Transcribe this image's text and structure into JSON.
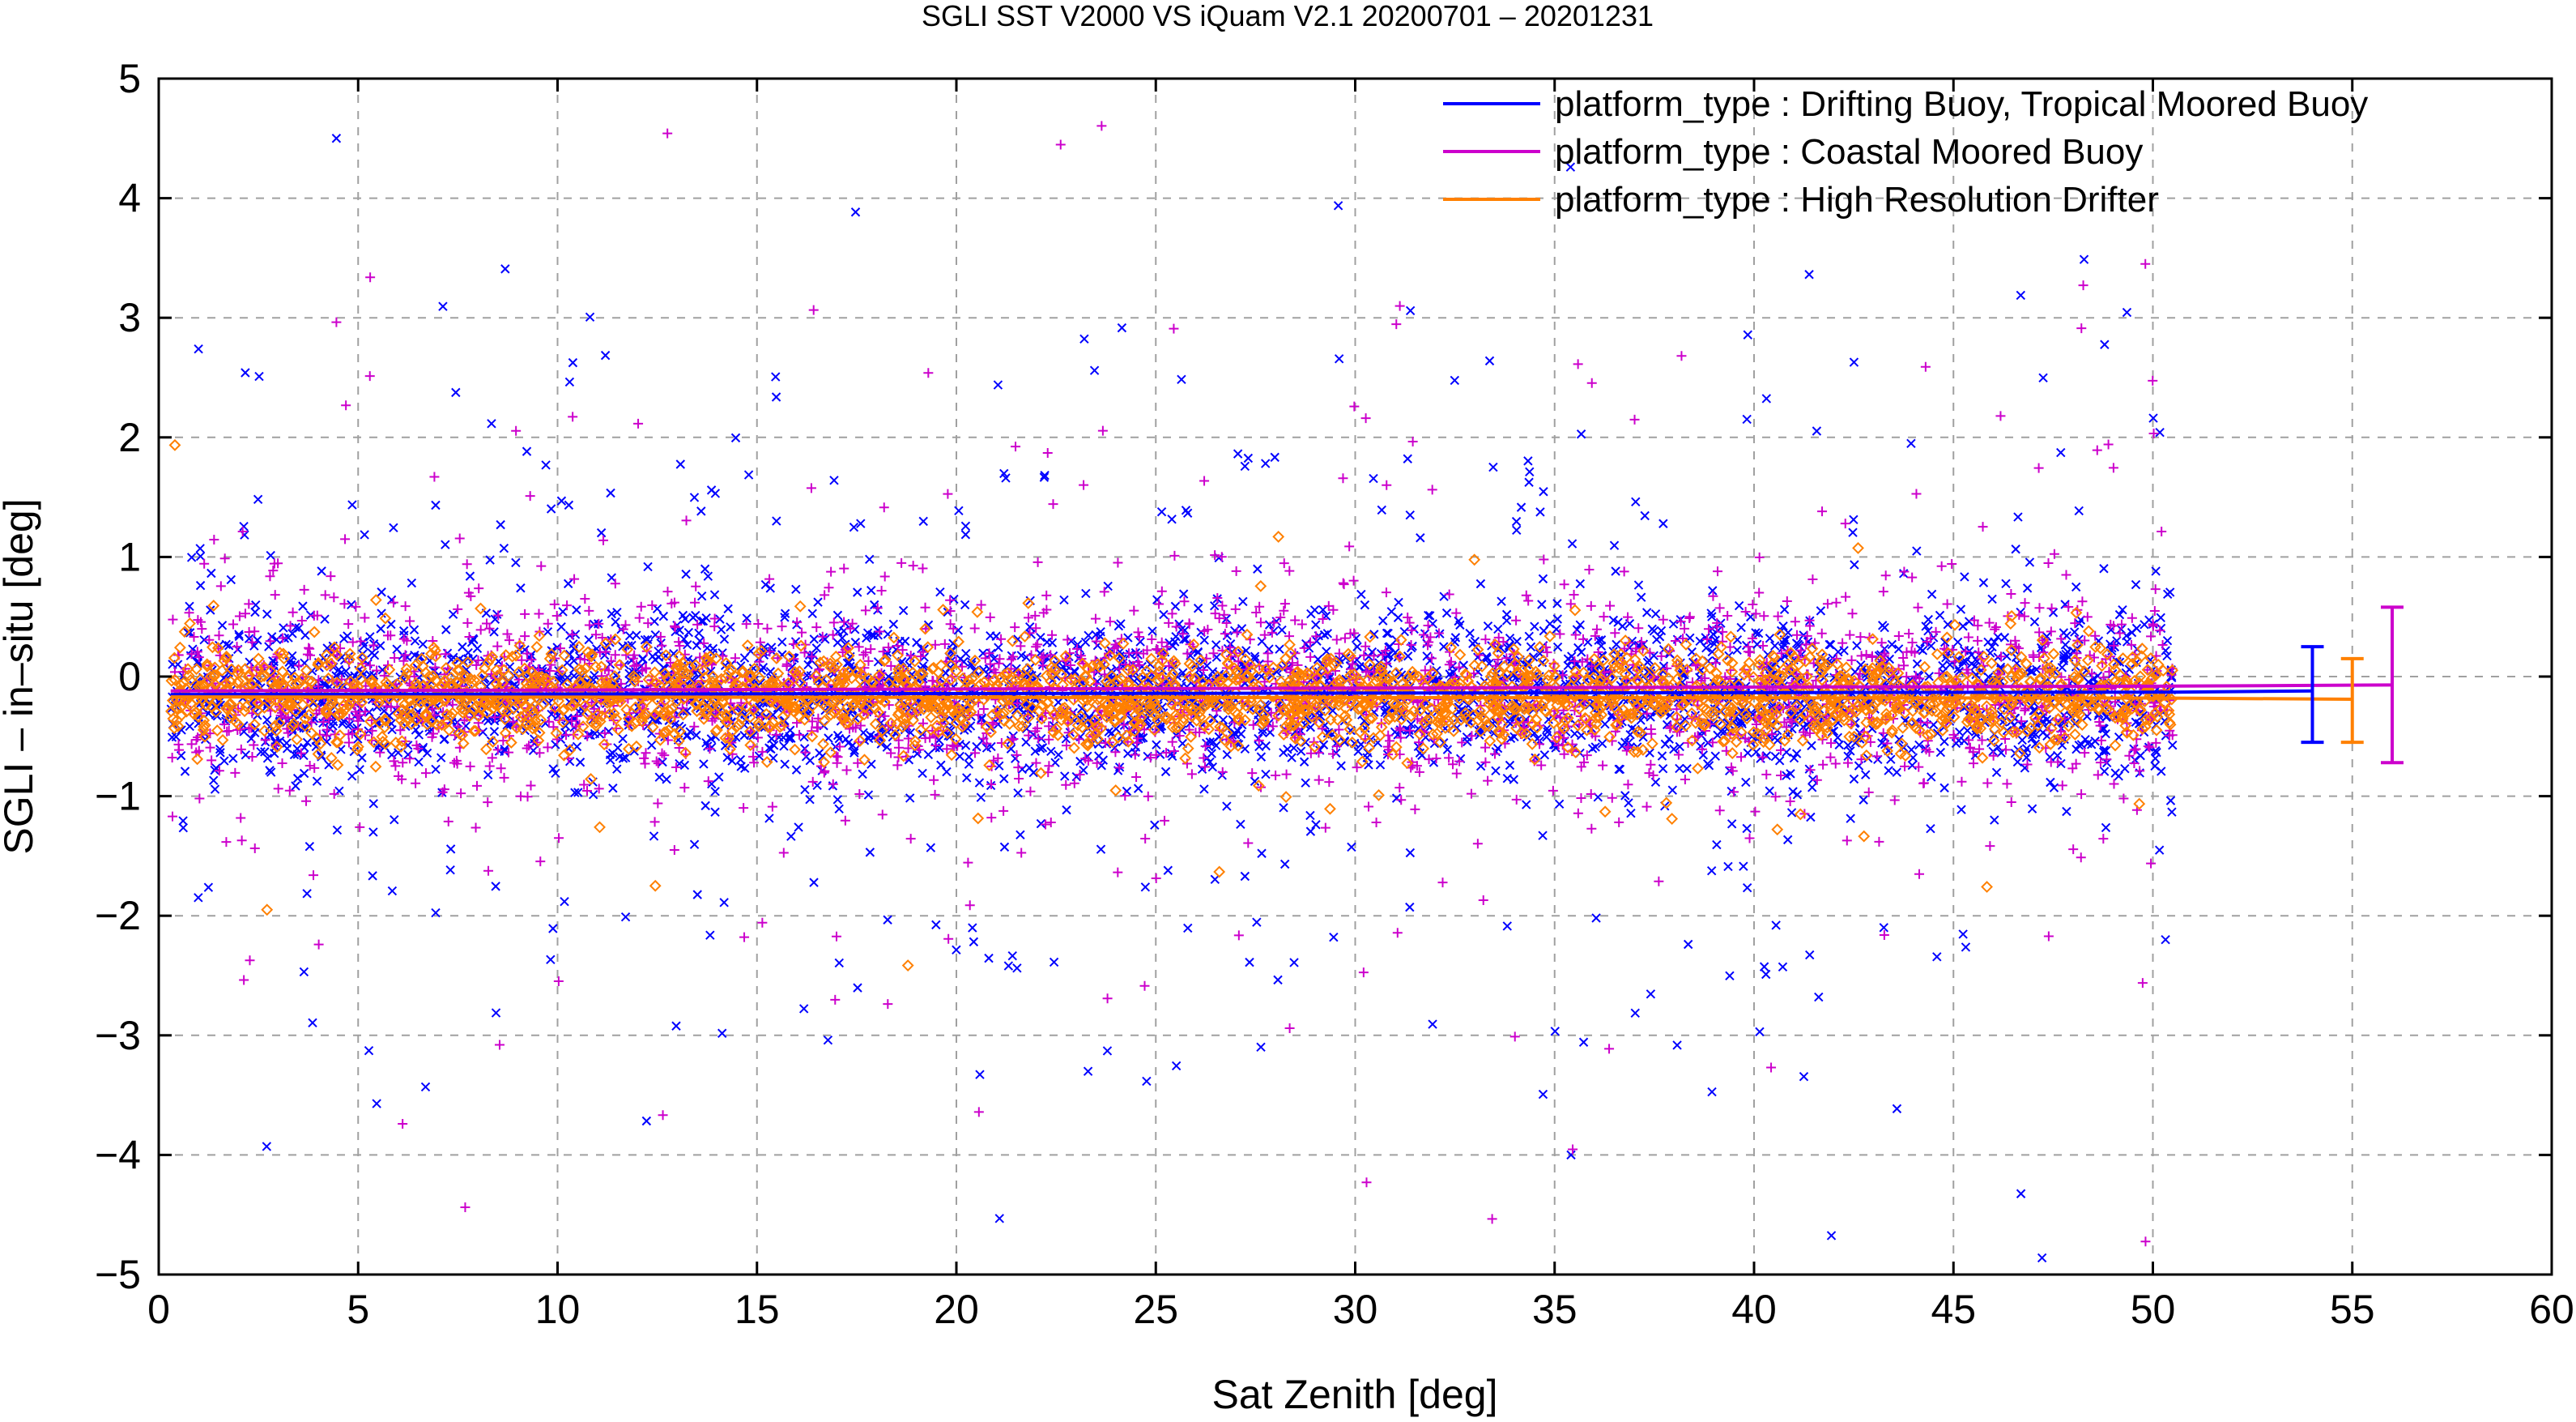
{
  "chart_data": {
    "type": "scatter",
    "title": "SGLI SST V2000 VS iQuam V2.1 20200701 – 20201231",
    "xlabel": "Sat Zenith [deg]",
    "ylabel": "SGLI – in–situ [deg]",
    "xlim": [
      0,
      60
    ],
    "ylim": [
      -5,
      5
    ],
    "x_ticks": [
      0,
      5,
      10,
      15,
      20,
      25,
      30,
      35,
      40,
      45,
      50,
      55,
      60
    ],
    "y_ticks": [
      -5,
      -4,
      -3,
      -2,
      -1,
      0,
      1,
      2,
      3,
      4,
      5
    ],
    "y_tick_labels": [
      "−5",
      "−4",
      "−3",
      "−2",
      "−1",
      "0",
      "1",
      "2",
      "3",
      "4",
      "5"
    ],
    "grid": true,
    "legend_position": "top-right",
    "x_data_range": [
      0.3,
      50.5
    ],
    "series": [
      {
        "name": "platform_type : Drifting Buoy, Tropical Moored Buoy",
        "color": "#0000ff",
        "marker": "x",
        "mean_line": [
          [
            0.3,
            -0.15
          ],
          [
            50.5,
            -0.13
          ],
          [
            54,
            -0.12
          ]
        ],
        "summary": {
          "x": 54,
          "mean": -0.13,
          "low": -0.55,
          "high": 0.25
        }
      },
      {
        "name": "platform_type : Coastal Moored Buoy",
        "color": "#cc00cc",
        "marker": "+",
        "mean_line": [
          [
            0.3,
            -0.12
          ],
          [
            50.5,
            -0.08
          ],
          [
            56,
            -0.07
          ]
        ],
        "summary": {
          "x": 56,
          "mean": -0.07,
          "low": -0.72,
          "high": 0.58
        }
      },
      {
        "name": "platform_type : High Resolution Drifter",
        "color": "#ff8000",
        "marker": "diamond",
        "mean_line": [
          [
            0.3,
            -0.17
          ],
          [
            50.5,
            -0.18
          ],
          [
            55,
            -0.19
          ]
        ],
        "summary": {
          "x": 55,
          "mean": -0.2,
          "low": -0.55,
          "high": 0.15
        }
      }
    ]
  }
}
